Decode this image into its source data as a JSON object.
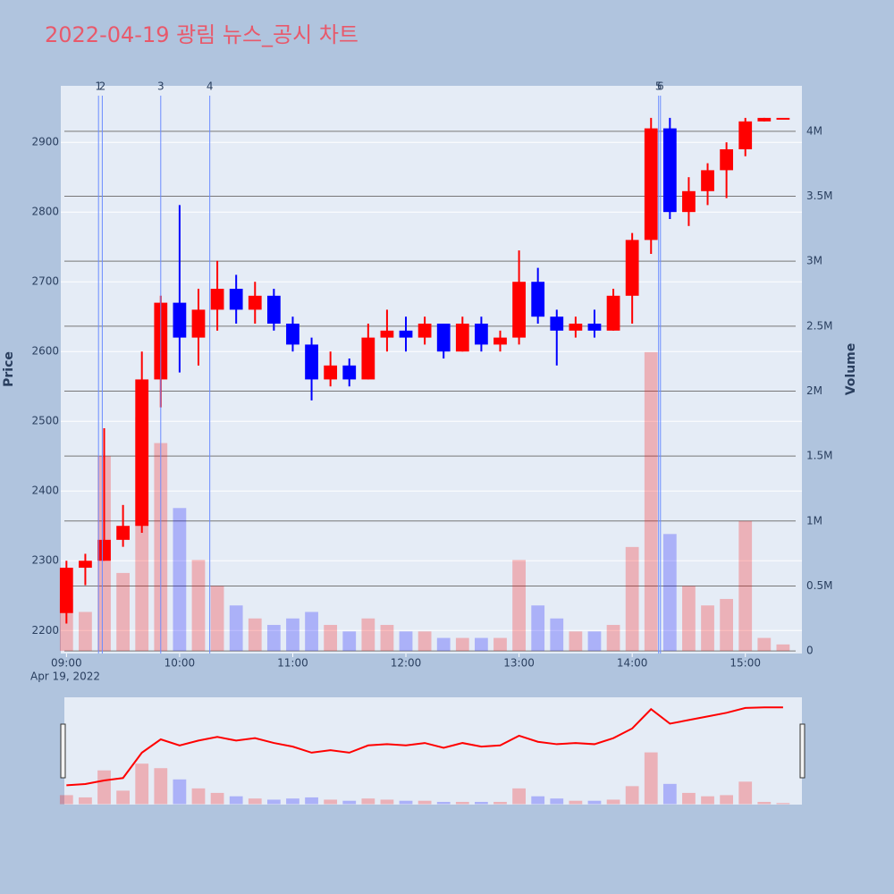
{
  "chart_data": {
    "type": "candlestick",
    "title": "2022-04-19 광림 뉴스_공시 차트",
    "ylabel": "Price",
    "y2label": "Volume",
    "x_date": "Apr 19, 2022",
    "up_color": "#ff0000",
    "down_color": "#0000ff",
    "x": [
      "09:00",
      "09:10",
      "09:20",
      "09:30",
      "09:40",
      "09:50",
      "10:00",
      "10:10",
      "10:20",
      "10:30",
      "10:40",
      "10:50",
      "11:00",
      "11:10",
      "11:20",
      "11:30",
      "11:40",
      "11:50",
      "12:00",
      "12:10",
      "12:20",
      "12:30",
      "12:40",
      "12:50",
      "13:00",
      "13:10",
      "13:20",
      "13:30",
      "13:40",
      "13:50",
      "14:00",
      "14:10",
      "14:20",
      "14:30",
      "14:40",
      "14:50",
      "15:00",
      "15:10",
      "15:20"
    ],
    "open": [
      2225,
      2290,
      2300,
      2330,
      2350,
      2560,
      2670,
      2620,
      2660,
      2690,
      2660,
      2680,
      2640,
      2610,
      2560,
      2580,
      2560,
      2620,
      2630,
      2620,
      2640,
      2600,
      2640,
      2610,
      2620,
      2700,
      2650,
      2630,
      2640,
      2630,
      2680,
      2760,
      2920,
      2800,
      2830,
      2860,
      2890,
      2930,
      2935
    ],
    "high": [
      2300,
      2310,
      2490,
      2380,
      2600,
      2680,
      2810,
      2690,
      2730,
      2710,
      2700,
      2690,
      2650,
      2620,
      2600,
      2590,
      2640,
      2660,
      2650,
      2650,
      2640,
      2650,
      2650,
      2630,
      2745,
      2720,
      2660,
      2650,
      2660,
      2690,
      2770,
      2935,
      2935,
      2850,
      2870,
      2900,
      2935,
      2935,
      2935
    ],
    "low": [
      2210,
      2265,
      2300,
      2320,
      2340,
      2520,
      2570,
      2580,
      2630,
      2640,
      2640,
      2630,
      2600,
      2530,
      2550,
      2550,
      2560,
      2600,
      2600,
      2610,
      2590,
      2600,
      2600,
      2600,
      2610,
      2640,
      2580,
      2620,
      2620,
      2630,
      2640,
      2740,
      2790,
      2780,
      2810,
      2820,
      2880,
      2930,
      2935
    ],
    "close": [
      2290,
      2300,
      2330,
      2350,
      2560,
      2670,
      2620,
      2660,
      2690,
      2660,
      2680,
      2640,
      2610,
      2560,
      2580,
      2560,
      2620,
      2630,
      2620,
      2640,
      2600,
      2640,
      2610,
      2620,
      2700,
      2650,
      2630,
      2640,
      2630,
      2680,
      2760,
      2920,
      2800,
      2830,
      2860,
      2890,
      2930,
      2935,
      2935
    ],
    "volume": [
      400000,
      300000,
      1500000,
      600000,
      1800000,
      1600000,
      1100000,
      700000,
      500000,
      350000,
      250000,
      200000,
      250000,
      300000,
      200000,
      150000,
      250000,
      200000,
      150000,
      150000,
      100000,
      100000,
      100000,
      100000,
      700000,
      350000,
      250000,
      150000,
      150000,
      200000,
      800000,
      2300000,
      900000,
      500000,
      350000,
      400000,
      1000000,
      100000,
      50000
    ],
    "xlim": [
      "08:57",
      "15:30"
    ],
    "xticks": [
      "09:00",
      "10:00",
      "11:00",
      "12:00",
      "13:00",
      "14:00",
      "15:00"
    ],
    "ylim": [
      2167,
      2981
    ],
    "yticks": [
      2200,
      2300,
      2400,
      2500,
      2600,
      2700,
      2800,
      2900
    ],
    "y2lim": [
      -20000,
      4350000
    ],
    "y2ticks": [
      0,
      {
        "value": 500000,
        "label": "0.5M"
      },
      {
        "value": 1000000,
        "label": "1M"
      },
      {
        "value": 1500000,
        "label": "1.5M"
      },
      {
        "value": 2000000,
        "label": "2M"
      },
      {
        "value": 2500000,
        "label": "2.5M"
      },
      {
        "value": 3000000,
        "label": "3M"
      },
      {
        "value": 3500000,
        "label": "3.5M"
      },
      {
        "value": 4000000,
        "label": "4M"
      }
    ],
    "annotations": [
      {
        "x": "09:17",
        "text": "1"
      },
      {
        "x": "09:19",
        "text": "2"
      },
      {
        "x": "09:50",
        "text": "3"
      },
      {
        "x": "10:16",
        "text": "4"
      },
      {
        "x": "14:14",
        "text": "5"
      },
      {
        "x": "14:15",
        "text": "6"
      }
    ]
  }
}
